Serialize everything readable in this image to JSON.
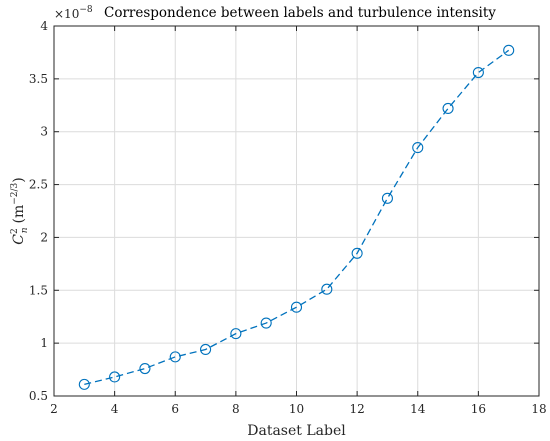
{
  "chart_data": {
    "type": "line",
    "title": "Correspondence between labels and turbulence intensity",
    "xlabel": "Dataset Label",
    "ylabel_main": "C",
    "ylabel_sup": "2",
    "ylabel_sub": "n",
    "ylabel_unit": "(m",
    "ylabel_unit_exp": "−2/3",
    "ylabel_unit_close": ")",
    "y_multiplier_base": "×10",
    "y_multiplier_exp": "−8",
    "xlim": [
      2,
      18
    ],
    "ylim": [
      0.5,
      4
    ],
    "x_ticks": [
      2,
      4,
      6,
      8,
      10,
      12,
      14,
      16,
      18
    ],
    "x_tick_labels": [
      "2",
      "4",
      "6",
      "8",
      "10",
      "12",
      "14",
      "16",
      "18"
    ],
    "y_ticks": [
      0.5,
      1,
      1.5,
      2,
      2.5,
      3,
      3.5,
      4
    ],
    "y_tick_labels": [
      "0.5",
      "1",
      "1.5",
      "2",
      "2.5",
      "3",
      "3.5",
      "4"
    ],
    "grid": true,
    "series": [
      {
        "x": [
          3,
          4,
          5,
          6,
          7,
          8,
          9,
          10,
          11,
          12,
          13,
          14,
          15,
          16,
          17
        ],
        "values": [
          0.61,
          0.68,
          0.76,
          0.87,
          0.94,
          1.09,
          1.19,
          1.34,
          1.51,
          1.85,
          2.37,
          2.85,
          3.22,
          3.56,
          3.77
        ],
        "color": "#0072BD",
        "line_style": "dashed",
        "marker": "open-circle"
      }
    ]
  }
}
